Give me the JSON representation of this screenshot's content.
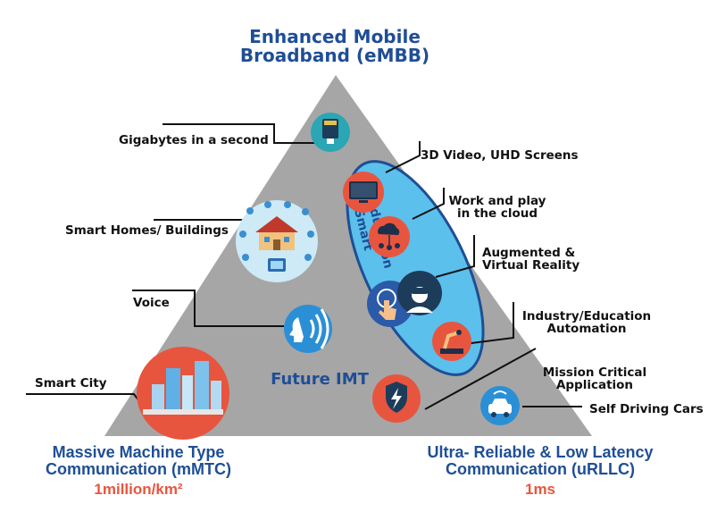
{
  "top_title": {
    "line1": "Enhanced Mobile",
    "line2": "Broadband (eMBB)"
  },
  "left_title": {
    "line1": "Massive Machine Type",
    "line2": "Communication (mMTC)",
    "metric": "1million/km²"
  },
  "right_title": {
    "line1": "Ultra- Reliable & Low Latency",
    "line2": "Communication (uRLLC)",
    "metric": "1ms"
  },
  "center_label": "Future IMT",
  "ellipse_label": "Smart Education",
  "labels": {
    "gigabytes": "Gigabytes in a second",
    "smart_homes": "Smart Homes/ Buildings",
    "voice": "Voice",
    "smart_city": "Smart City",
    "video": "3D Video, UHD Screens",
    "cloud": [
      "Work and play",
      "in the cloud"
    ],
    "ar_vr": [
      "Augmented &",
      "Virtual Reality"
    ],
    "industry": [
      "Industry/Education",
      "Automation"
    ],
    "mission": [
      "Mission Critical",
      "Application"
    ],
    "cars": "Self Driving Cars"
  },
  "colors": {
    "triangle": "#a6a6a6",
    "title_blue": "#1f4e96",
    "metric_red": "#e8553e",
    "ellipse_fill": "#5bc0eb",
    "ellipse_border": "#1f4e96"
  },
  "icons": [
    "sd-card-icon",
    "smart-home-icon",
    "voice-icon",
    "city-icon",
    "tv-screen-icon",
    "cloud-network-icon",
    "touch-icon",
    "vr-headset-icon",
    "robot-arm-icon",
    "shield-lightning-icon",
    "self-driving-car-icon"
  ]
}
